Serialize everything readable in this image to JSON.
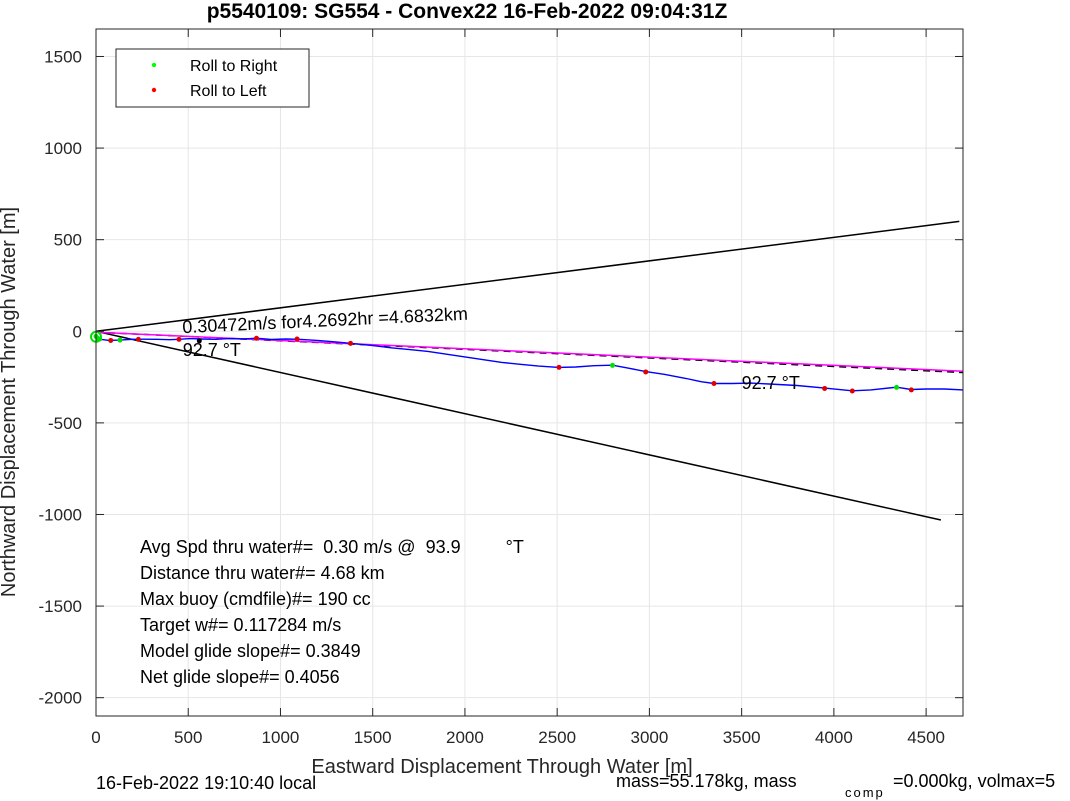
{
  "chart_data": {
    "type": "line",
    "title": "p5540109: SG554 - Convex22 16-Feb-2022 09:04:31Z",
    "xlabel": "Eastward Displacement Through Water [m]",
    "ylabel": "Northward Displacement Through Water [m]",
    "xlim": [
      0,
      4700
    ],
    "ylim": [
      -2100,
      1650
    ],
    "x_ticks": [
      0,
      500,
      1000,
      1500,
      2000,
      2500,
      3000,
      3500,
      4000,
      4500
    ],
    "y_ticks": [
      1500,
      1000,
      500,
      0,
      -500,
      -1000,
      -1500,
      -2000
    ],
    "x_tick_labels": [
      "0",
      "500",
      "1000",
      "1500",
      "2000",
      "2500",
      "3000",
      "3500",
      "4000",
      "4500"
    ],
    "y_tick_labels": [
      "1500",
      "1000",
      "500",
      "0",
      "-500",
      "-1000",
      "-1500",
      "-2000"
    ],
    "grid": true,
    "legend_position": "top-left",
    "legend": [
      {
        "label": "Roll to Right",
        "color": "#00ff00"
      },
      {
        "label": "Roll to Left",
        "color": "#ff0000"
      }
    ],
    "colors": {
      "track": "#0000ff",
      "cone": "#000000",
      "heading": "#ff00ff",
      "dashed_heading": "#000000",
      "roll_right": "#00e000",
      "roll_left": "#e00000",
      "grid": "#e6e6e6"
    },
    "series": [
      {
        "points": [
          [
            0,
            -20
          ],
          [
            30,
            -45
          ],
          [
            70,
            -50
          ],
          [
            130,
            -48
          ],
          [
            200,
            -44
          ],
          [
            260,
            -43
          ],
          [
            330,
            -44
          ],
          [
            400,
            -46
          ],
          [
            450,
            -44
          ],
          [
            510,
            -40
          ],
          [
            570,
            -42
          ],
          [
            650,
            -44
          ],
          [
            720,
            -40
          ],
          [
            800,
            -42
          ],
          [
            870,
            -38
          ],
          [
            950,
            -45
          ],
          [
            1030,
            -42
          ],
          [
            1100,
            -44
          ],
          [
            1200,
            -50
          ],
          [
            1300,
            -58
          ],
          [
            1400,
            -68
          ],
          [
            1500,
            -78
          ],
          [
            1600,
            -90
          ],
          [
            1700,
            -100
          ],
          [
            1800,
            -110
          ],
          [
            1900,
            -125
          ],
          [
            2000,
            -140
          ],
          [
            2100,
            -155
          ],
          [
            2200,
            -170
          ],
          [
            2300,
            -180
          ],
          [
            2400,
            -190
          ],
          [
            2510,
            -197
          ],
          [
            2600,
            -195
          ],
          [
            2700,
            -188
          ],
          [
            2800,
            -185
          ],
          [
            2880,
            -200
          ],
          [
            2980,
            -220
          ],
          [
            3080,
            -235
          ],
          [
            3200,
            -258
          ],
          [
            3280,
            -275
          ],
          [
            3350,
            -285
          ],
          [
            3450,
            -285
          ],
          [
            3550,
            -283
          ],
          [
            3650,
            -288
          ],
          [
            3800,
            -296
          ],
          [
            3950,
            -310
          ],
          [
            4100,
            -325
          ],
          [
            4200,
            -320
          ],
          [
            4340,
            -305
          ],
          [
            4420,
            -318
          ],
          [
            4500,
            -315
          ],
          [
            4600,
            -315
          ],
          [
            4700,
            -320
          ]
        ]
      },
      {
        "points": [
          [
            0,
            -5
          ],
          [
            4700,
            -218
          ]
        ]
      },
      {
        "points": [
          [
            0,
            -5
          ],
          [
            4700,
            -225
          ]
        ]
      },
      {
        "points": [
          [
            0,
            0
          ],
          [
            4680,
            600
          ]
        ]
      },
      {
        "points": [
          [
            0,
            0
          ],
          [
            4580,
            -1030
          ]
        ]
      }
    ],
    "roll_right_points": [
      [
        0,
        -28
      ],
      [
        10,
        -40
      ],
      [
        20,
        -42
      ],
      [
        130,
        -48
      ],
      [
        2800,
        -186
      ],
      [
        4340,
        -306
      ]
    ],
    "roll_left_points": [
      [
        80,
        -50
      ],
      [
        230,
        -44
      ],
      [
        450,
        -44
      ],
      [
        870,
        -38
      ],
      [
        1090,
        -42
      ],
      [
        1380,
        -66
      ],
      [
        2510,
        -197
      ],
      [
        2980,
        -222
      ],
      [
        3350,
        -285
      ],
      [
        3950,
        -312
      ],
      [
        4100,
        -326
      ],
      [
        4420,
        -320
      ]
    ],
    "black_points": [
      [
        560,
        -52
      ]
    ],
    "annotations": [
      {
        "text": "0.30472m/s for4.2692hr =4.6832km",
        "x": 470,
        "y": -10,
        "rotation": -2.7
      },
      {
        "text": "92.7  °T",
        "x": 470,
        "y": -135
      },
      {
        "text": "92.7  °T",
        "x": 3500,
        "y": -315
      }
    ],
    "stats": [
      "Avg Spd thru water#=  0.30 m/s @  93.9         °T",
      "Distance thru water#=  4.68 km",
      "Max buoy (cmdfile)#= 190 cc",
      "Target w#= 0.117284 m/s",
      "Model glide slope#= 0.3849",
      "Net glide slope#= 0.4056"
    ],
    "footer": {
      "local_time": "16-Feb-2022 19:10:40 local",
      "mass_text": "mass=55.178kg, mass",
      "comp_sub": "comp",
      "mass_tail": "=0.000kg, volmax=5"
    }
  }
}
